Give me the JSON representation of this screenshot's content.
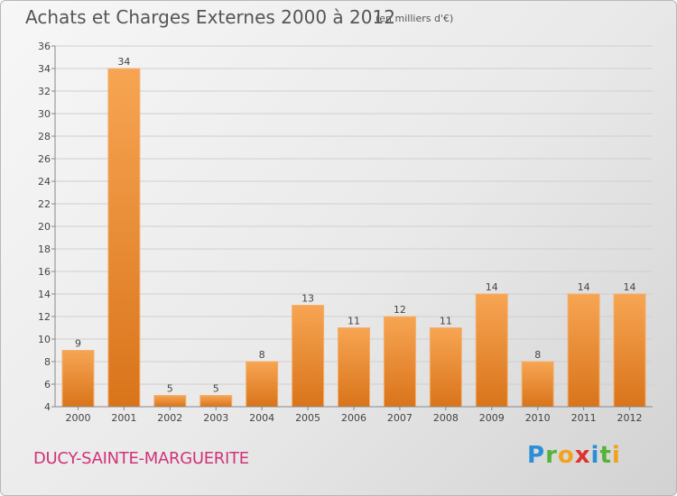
{
  "header": {
    "title": "Achats et Charges Externes 2000 à 2012",
    "units": "(en milliers d'€)"
  },
  "footer": {
    "commune": "DUCY-SAINTE-MARGUERITE",
    "logo_letters": [
      "P",
      "r",
      "o",
      "x",
      "i",
      "t",
      "i"
    ]
  },
  "colors": {
    "bar_light": "#f7a553",
    "bar_dark": "#d9741a",
    "commune": "#d0337a"
  },
  "chart_data": {
    "type": "bar",
    "title": "Achats et Charges Externes 2000 à 2012",
    "subtitle": "(en milliers d'€)",
    "xlabel": "",
    "ylabel": "",
    "categories": [
      "2000",
      "2001",
      "2002",
      "2003",
      "2004",
      "2005",
      "2006",
      "2007",
      "2008",
      "2009",
      "2010",
      "2011",
      "2012"
    ],
    "values": [
      9,
      34,
      5,
      5,
      8,
      13,
      11,
      12,
      11,
      14,
      8,
      14,
      14
    ],
    "ylim": [
      4,
      36
    ],
    "yticks": [
      4,
      6,
      8,
      10,
      12,
      14,
      16,
      18,
      20,
      22,
      24,
      26,
      28,
      30,
      32,
      34,
      36
    ],
    "grid": true,
    "legend": "none"
  }
}
